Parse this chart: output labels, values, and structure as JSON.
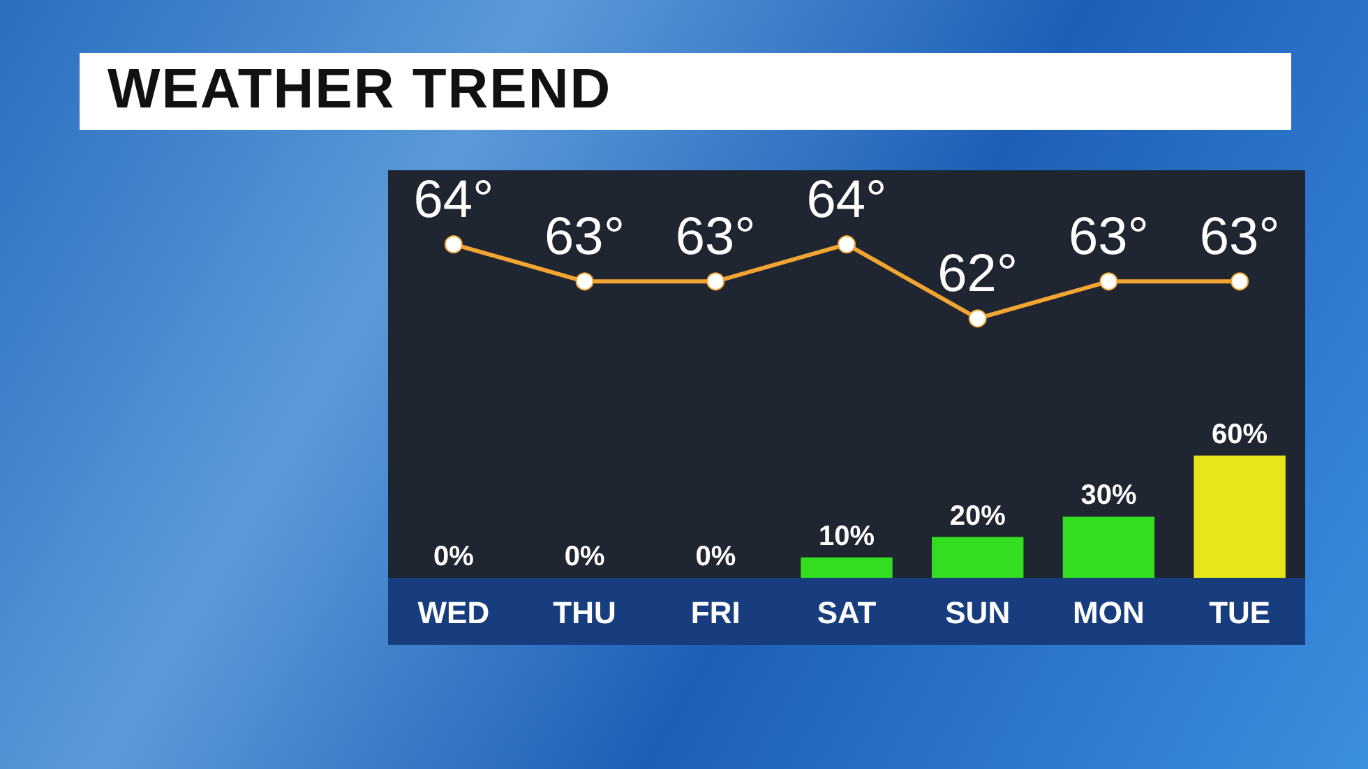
{
  "chart_data": {
    "type": "bar",
    "title": "WEATHER TREND",
    "categories": [
      "WED",
      "THU",
      "FRI",
      "SAT",
      "SUN",
      "MON",
      "TUE"
    ],
    "ylim": [
      0,
      200
    ],
    "y2lim": [
      55,
      66
    ],
    "grid": false,
    "tick_labels": "x",
    "series": [
      {
        "colors": [
          "#33dd1f",
          "#33dd1f",
          "#33dd1f",
          "#33dd1f",
          "#33dd1f",
          "#33dd1f",
          "#e6e61a"
        ],
        "values": [
          0,
          0,
          0,
          10,
          20,
          30,
          60
        ],
        "value_labels": [
          "0%",
          "0%",
          "0%",
          "10%",
          "20%",
          "30%",
          "60%"
        ]
      },
      {
        "type": "line",
        "axis": "y2",
        "color": "#f2a533",
        "marker": "circle",
        "values": [
          64,
          63,
          63,
          64,
          62,
          63,
          63
        ],
        "value_labels": [
          "64°",
          "63°",
          "63°",
          "64°",
          "62°",
          "63°",
          "63°"
        ]
      }
    ]
  }
}
